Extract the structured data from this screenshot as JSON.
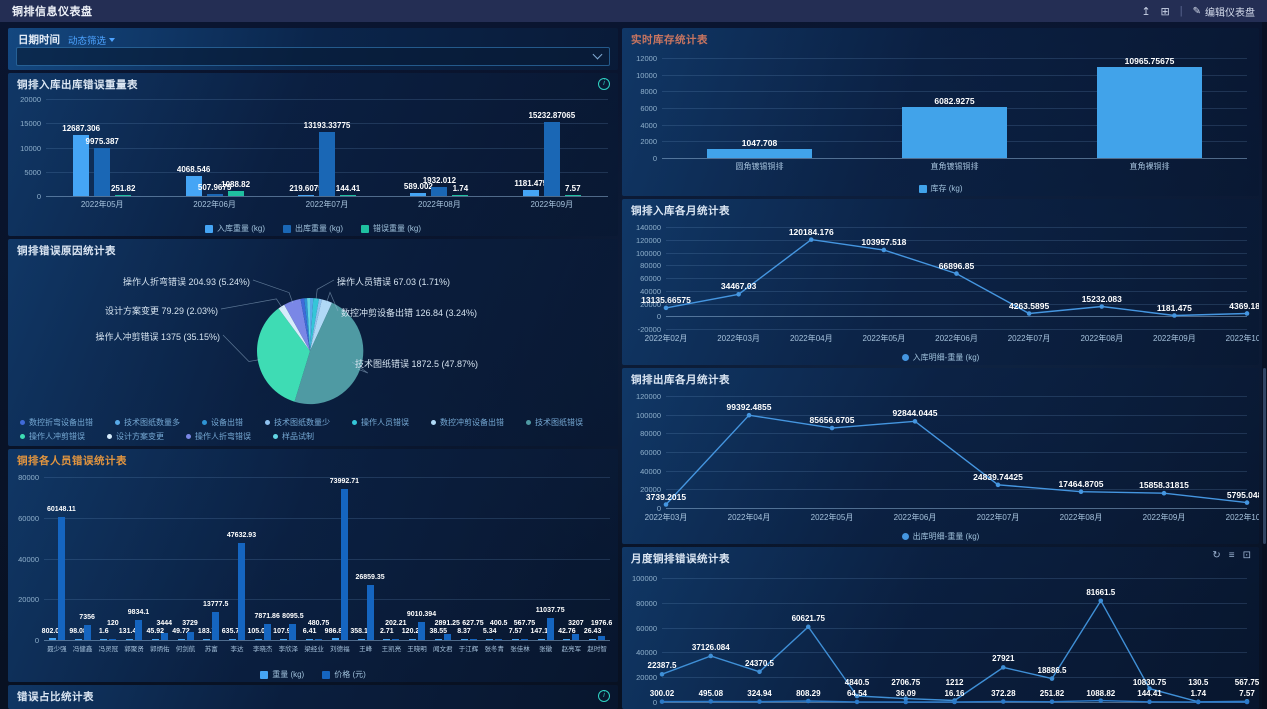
{
  "topbar": {
    "title": "铜排信息仪表盘",
    "edit_label": "编辑仪表盘",
    "icons": [
      "export-icon",
      "layout-grid-icon",
      "edit-pencil-icon"
    ]
  },
  "filter": {
    "label": "日期时间",
    "mode_link": "动态筛选",
    "select_value": ""
  },
  "panel_titles": {
    "inout_error": "铜排入库出库错误重量表",
    "error_reason": "铜排错误原因统计表",
    "person_error": "铜排各人员错误统计表",
    "error_ratio": "错误占比统计表",
    "inventory": "实时库存统计表",
    "monthly_in": "铜排入库各月统计表",
    "monthly_out": "铜排出库各月统计表",
    "monthly_error": "月度铜排错误统计表"
  },
  "toolbar_icons": [
    "refresh-icon",
    "legend-toggle-icon",
    "fullscreen-icon"
  ],
  "colors": {
    "series_light_blue": "#45a5f5",
    "series_dark_blue": "#1a67b5",
    "series_teal": "#1fc0a0",
    "inventory_bar": "#41a3ea",
    "line_blue": "#4596e0",
    "accent_teal": "#2fd3c3",
    "link_blue": "#4da3ff",
    "title_orange": "#e2953f",
    "title_red": "#c87560"
  },
  "chart_data": [
    {
      "id": "inout_error",
      "type": "bar",
      "categories": [
        "2022年05月",
        "2022年06月",
        "2022年07月",
        "2022年08月",
        "2022年09月"
      ],
      "series": [
        {
          "name": "入库重量 (kg)",
          "color": "#45a5f5",
          "values": [
            12687.306,
            4068.546,
            219.6075,
            589.002,
            1181.475
          ]
        },
        {
          "name": "出库重量 (kg)",
          "color": "#1a67b5",
          "values": [
            9975.387,
            507.9675,
            13193.33775,
            1932.012,
            15232.87065
          ]
        },
        {
          "name": "错误重量 (kg)",
          "color": "#1fc0a0",
          "values": [
            251.82,
            1088.82,
            144.41,
            1.74,
            7.57
          ]
        }
      ],
      "ylim": [
        0,
        20000
      ],
      "ytick": 5000,
      "grid": true,
      "legend_position": "bottom"
    },
    {
      "id": "error_reason",
      "type": "pie",
      "slices": [
        {
          "label": "技术图纸数量多",
          "value": "",
          "pct": 1.0,
          "color": "#58aae8",
          "labeled": false
        },
        {
          "label": "操作人员错误",
          "value": "67.03",
          "pct": 1.71,
          "color": "#34c6d8",
          "labeled": true
        },
        {
          "label": "技术图纸数量少",
          "value": "",
          "pct": 0.9,
          "color": "#8fc2ef",
          "labeled": false
        },
        {
          "label": "数控冲剪设备出错",
          "value": "126.84",
          "pct": 3.24,
          "color": "#b0d9f6",
          "labeled": true
        },
        {
          "label": "技术图纸错误",
          "value": "1872.5",
          "pct": 47.87,
          "color": "#4f9aa3",
          "labeled": true
        },
        {
          "label": "操作人冲剪错误",
          "value": "1375",
          "pct": 35.15,
          "color": "#3edcb4",
          "labeled": true
        },
        {
          "label": "设计方案变更",
          "value": "79.29",
          "pct": 2.03,
          "color": "#d6ecfb",
          "labeled": true
        },
        {
          "label": "操作人折弯错误",
          "value": "204.93",
          "pct": 5.24,
          "color": "#7a87e6",
          "labeled": true
        },
        {
          "label": "数控折弯设备出错",
          "value": "",
          "pct": 1.1,
          "color": "#3f6ad8",
          "labeled": false
        },
        {
          "label": "设备出错",
          "value": "",
          "pct": 0.86,
          "color": "#2e93d4",
          "labeled": false
        },
        {
          "label": "样品试制",
          "value": "",
          "pct": 0.9,
          "color": "#62d5e4",
          "labeled": false
        }
      ],
      "legend": [
        "数控折弯设备出错",
        "技术图纸数量多",
        "设备出错",
        "技术图纸数量少",
        "操作人员错误",
        "数控冲剪设备出错",
        "技术图纸错误",
        "操作人冲剪错误",
        "设计方案变更",
        "操作人折弯错误",
        "样品试制"
      ],
      "legend_position": "bottom"
    },
    {
      "id": "person_error",
      "type": "bar",
      "categories": [
        "聂少强",
        "冯健鑫",
        "冯灵冠",
        "郭聚贤",
        "郭炳佑",
        "何剑航",
        "苏富",
        "李达",
        "李晓杰",
        "李欣泽",
        "梁经业",
        "刘德福",
        "王峰",
        "王凯亮",
        "王晓明",
        "闻文君",
        "于江辉",
        "张冬青",
        "张佳林",
        "张徽",
        "赵亮军",
        "赵时智"
      ],
      "series": [
        {
          "name": "重量 (kg)",
          "color": "#45a5f5",
          "values": [
            802.05,
            98.08,
            1.6,
            131.41,
            45.92,
            49.72,
            183.7,
            635.75,
            105.03,
            107.94,
            6.41,
            986.84,
            358.18,
            2.71,
            120.23,
            38.55,
            8.37,
            5.34,
            7.57,
            147.17,
            42.76,
            26.43
          ]
        },
        {
          "name": "价格 (元)",
          "color": "#1565c0",
          "values": [
            60148.11,
            7356,
            120,
            9834.1,
            3444,
            3729,
            13777.5,
            47632.93,
            7871.86,
            8095.5,
            480.75,
            73992.71,
            26859.35,
            202.21,
            9010.394,
            2891.25,
            627.75,
            400.5,
            567.75,
            11037.75,
            3207,
            1976.6
          ]
        }
      ],
      "ylim": [
        0,
        80000
      ],
      "ytick": 20000,
      "grid": true,
      "legend_position": "bottom"
    },
    {
      "id": "inventory",
      "type": "bar",
      "categories": [
        "圆角镀锡铜排",
        "直角镀锡铜排",
        "直角裸铜排"
      ],
      "series": [
        {
          "name": "库存 (kg)",
          "color": "#41a3ea",
          "values": [
            1047.708,
            6082.9275,
            10965.75675
          ]
        }
      ],
      "ylim": [
        0,
        12000
      ],
      "ytick": 2000,
      "grid": true,
      "legend_position": "bottom"
    },
    {
      "id": "monthly_in",
      "type": "line",
      "x": [
        "2022年02月",
        "2022年03月",
        "2022年04月",
        "2022年05月",
        "2022年06月",
        "2022年07月",
        "2022年08月",
        "2022年09月",
        "2022年10月"
      ],
      "series": [
        {
          "name": "入库明细-重量 (kg)",
          "color": "#4596e0",
          "values": [
            13135.66575,
            34467.03,
            120184.176,
            103957.518,
            66896.85,
            4263.5895,
            15232.083,
            1181.475,
            4369.188
          ]
        }
      ],
      "ylim": [
        -20000,
        140000
      ],
      "ytick": 20000,
      "grid": true,
      "legend_position": "bottom"
    },
    {
      "id": "monthly_out",
      "type": "line",
      "x": [
        "2022年03月",
        "2022年04月",
        "2022年05月",
        "2022年06月",
        "2022年07月",
        "2022年08月",
        "2022年09月",
        "2022年10月"
      ],
      "series": [
        {
          "name": "出库明细-重量 (kg)",
          "color": "#4596e0",
          "values": [
            3739.2015,
            99392.4855,
            85656.6705,
            92844.0445,
            24839.74425,
            17464.8705,
            15858.31815,
            5795.0481
          ]
        }
      ],
      "ylim": [
        0,
        120000
      ],
      "ytick": 20000,
      "grid": true,
      "legend_position": "bottom"
    },
    {
      "id": "monthly_error",
      "type": "line",
      "x": [
        "",
        "",
        "",
        "",
        "",
        "",
        "",
        "",
        "",
        "",
        "",
        "",
        ""
      ],
      "x_hidden": true,
      "series": [
        {
          "name": "",
          "color": "#3f8fd6",
          "values": [
            22387.5,
            37126.084,
            24370.5,
            60621.75,
            4840.5,
            2706.75,
            1212,
            27921,
            18886.5,
            81661.5,
            10830.75,
            130.5,
            567.75
          ]
        },
        {
          "name": "",
          "color": "#2a79c9",
          "values": [
            300.02,
            495.08,
            324.94,
            808.29,
            64.54,
            36.09,
            16.16,
            372.28,
            251.82,
            1088.82,
            144.41,
            1.74,
            7.57
          ]
        }
      ],
      "ylim": [
        0,
        100000
      ],
      "ytick": 20000,
      "grid": true
    }
  ]
}
